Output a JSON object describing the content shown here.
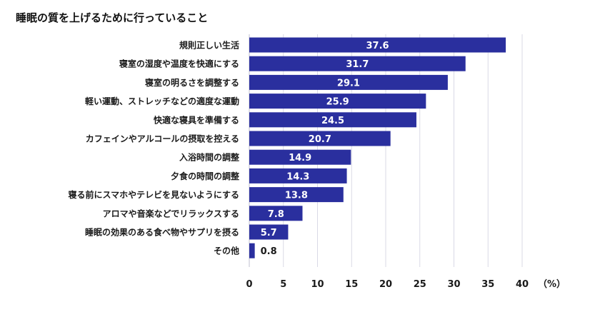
{
  "chart_data": {
    "type": "bar",
    "orientation": "horizontal",
    "title": "睡眠の質を上げるために行っていること",
    "unit": "（%）",
    "categories": [
      "規則正しい生活",
      "寝室の湿度や温度を快適にする",
      "寝室の明るさを調整する",
      "軽い運動、ストレッチなどの適度な運動",
      "快適な寝具を準備する",
      "カフェインやアルコールの摂取を控える",
      "入浴時間の調整",
      "夕食の時間の調整",
      "寝る前にスマホやテレビを見ないようにする",
      "アロマや音楽などでリラックスする",
      "睡眠の効果のある食べ物やサプリを摂る",
      "その他"
    ],
    "values": [
      37.6,
      31.7,
      29.1,
      25.9,
      24.5,
      20.7,
      14.9,
      14.3,
      13.8,
      7.8,
      5.7,
      0.8
    ],
    "value_labels": [
      "37.6",
      "31.7",
      "29.1",
      "25.9",
      "24.5",
      "20.7",
      "14.9",
      "14.3",
      "13.8",
      "7.8",
      "5.7",
      "0.8"
    ],
    "xlim": [
      0,
      40
    ],
    "xticks": [
      0,
      5,
      10,
      15,
      20,
      25,
      30,
      35,
      40
    ],
    "grid": true,
    "bar_color": "#2a2f9e",
    "grid_color": "#d9d9e6",
    "label_color_inside": "#ffffff",
    "label_color_outside": "#1a1a1a"
  }
}
